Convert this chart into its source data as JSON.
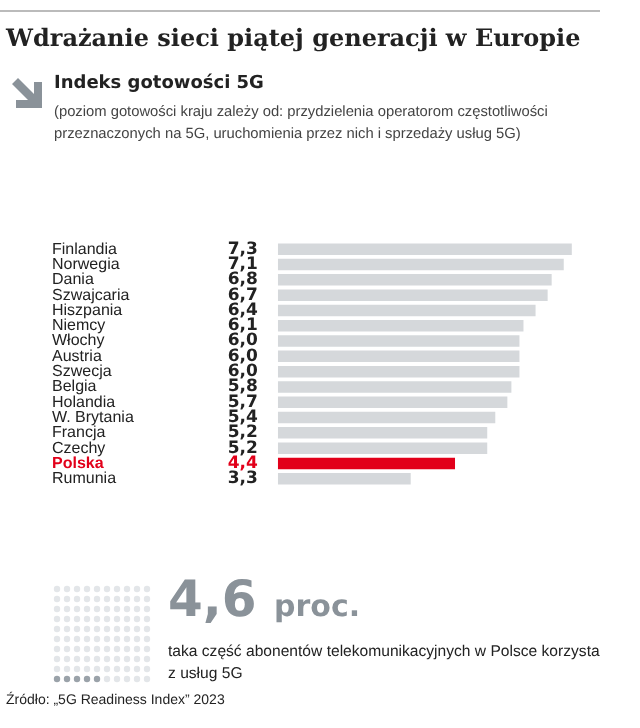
{
  "chart_data": {
    "type": "bar",
    "orientation": "horizontal",
    "title": "Wdrażanie sieci piątej generacji w Europie",
    "subtitle": "Indeks gotowości 5G",
    "annotations": [
      "(poziom gotowości kraju zależy od: przydzielenia operatorom częstotliwości przeznaczonych na 5G, uruchomienia przez nich i sprzedaży usług 5G)",
      "4,6 proc.",
      "taka część abonentów telekomunikacyjnych w Polsce korzysta z usług 5G",
      "Źródło: „5G Readiness Index” 2023"
    ],
    "categories": [
      "Finlandia",
      "Norwegia",
      "Dania",
      "Szwajcaria",
      "Hiszpania",
      "Niemcy",
      "Włochy",
      "Austria",
      "Szwecja",
      "Belgia",
      "Holandia",
      "W. Brytania",
      "Francja",
      "Czechy",
      "Polska",
      "Rumunia"
    ],
    "series": [
      {
        "color": "#d5d8db",
        "values": [
          7.3,
          7.1,
          6.8,
          6.7,
          6.4,
          6.1,
          6.0,
          6.0,
          6.0,
          5.8,
          5.7,
          5.4,
          5.2,
          5.2,
          4.4,
          3.3
        ],
        "colors": [
          "#d5d8db",
          "#d5d8db",
          "#d5d8db",
          "#d5d8db",
          "#d5d8db",
          "#d5d8db",
          "#d5d8db",
          "#d5d8db",
          "#d5d8db",
          "#d5d8db",
          "#d5d8db",
          "#d5d8db",
          "#d5d8db",
          "#d5d8db",
          "#e2001a",
          "#d5d8db"
        ],
        "value_labels": [
          "7,3",
          "7,1",
          "6,8",
          "6,7",
          "6,4",
          "6,1",
          "6,0",
          "6,0",
          "6,0",
          "5,8",
          "5,7",
          "5,4",
          "5,2",
          "5,2",
          "4,4",
          "3,3"
        ]
      }
    ],
    "tick_labels": "y",
    "legend": false
  }
}
